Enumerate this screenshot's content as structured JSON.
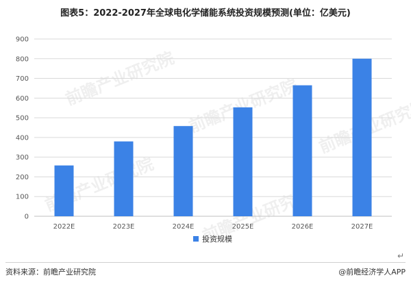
{
  "title": "图表5：2022-2027年全球电化学储能系统投资规模预测(单位：亿美元)",
  "footer": {
    "source": "资料来源：前瞻产业研究院",
    "brand": "@前瞻经济学人APP"
  },
  "watermark": "前瞻产业研究院",
  "colors": {
    "bar": "#3b82e6",
    "grid": "#d9d9d9",
    "axis": "#bfbfbf"
  },
  "chart_data": {
    "type": "bar",
    "categories": [
      "2022E",
      "2023E",
      "2024E",
      "2025E",
      "2026E",
      "2027E"
    ],
    "series": [
      {
        "name": "投资规模",
        "values": [
          258,
          380,
          458,
          553,
          665,
          800
        ]
      }
    ],
    "ylim": [
      0,
      900
    ],
    "yticks": [
      0,
      100,
      200,
      300,
      400,
      500,
      600,
      700,
      800,
      900
    ],
    "grid": true,
    "legend": "bottom-center"
  }
}
